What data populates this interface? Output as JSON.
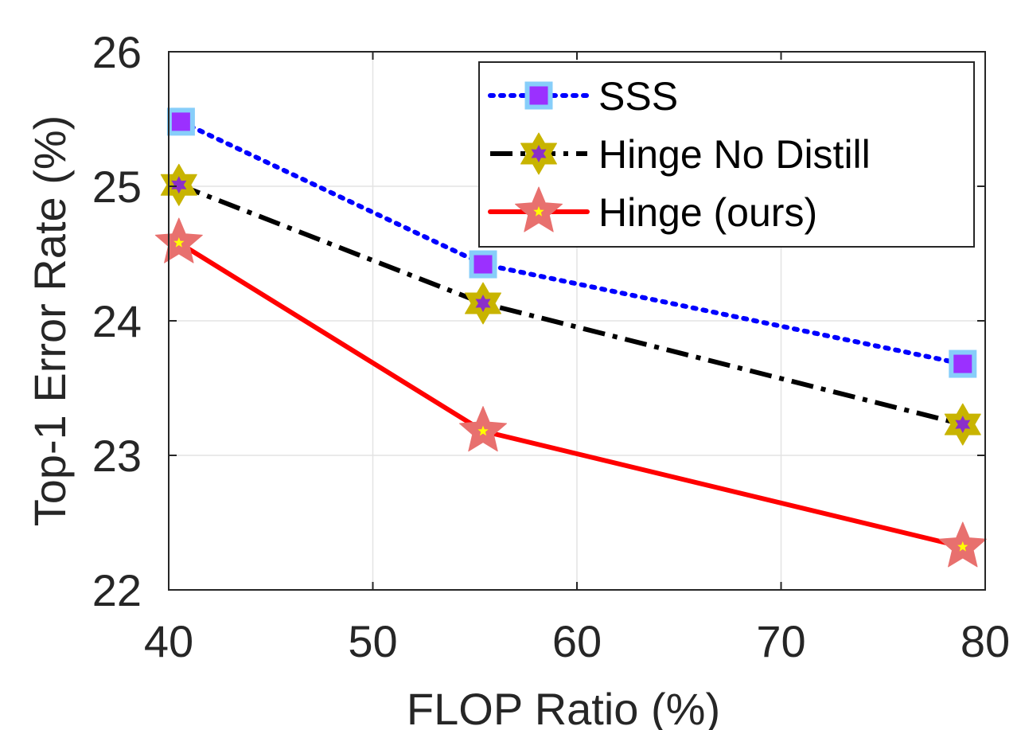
{
  "chart_data": {
    "type": "line",
    "title": "",
    "xlabel": "FLOP Ratio (%)",
    "ylabel": "Top-1 Error Rate (%)",
    "xlim": [
      40,
      80
    ],
    "ylim": [
      22,
      26
    ],
    "xticks": [
      40,
      50,
      60,
      70,
      80
    ],
    "yticks": [
      22,
      23,
      24,
      25,
      26
    ],
    "grid": true,
    "legend_position": "top-right",
    "series": [
      {
        "name": "SSS",
        "x": [
          40.6,
          55.4,
          78.9
        ],
        "y": [
          25.48,
          24.42,
          23.68
        ],
        "color": "#0000ff",
        "line_style": "dotted",
        "marker": "square",
        "marker_face": "#9b30ff",
        "marker_edge": "#87cefa"
      },
      {
        "name": "Hinge No Distill",
        "x": [
          40.5,
          55.4,
          78.9
        ],
        "y": [
          25.01,
          24.13,
          23.23
        ],
        "color": "#000000",
        "line_style": "dash-dot",
        "marker": "hexagram",
        "marker_face": "#8b2fc9",
        "marker_edge": "#c8b400"
      },
      {
        "name": "Hinge (ours)",
        "x": [
          40.5,
          55.4,
          78.9
        ],
        "y": [
          24.58,
          23.18,
          22.32
        ],
        "color": "#ff0000",
        "line_style": "solid",
        "marker": "pentagram",
        "marker_face": "#ffff00",
        "marker_edge": "#e8706e"
      }
    ]
  }
}
